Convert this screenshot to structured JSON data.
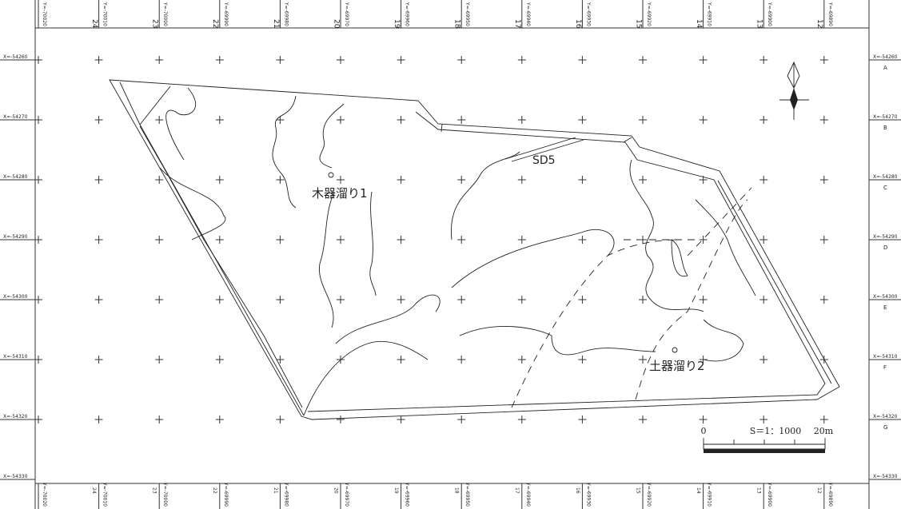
{
  "map": {
    "columns": [
      "Y=-70020",
      "Y=-70010",
      "Y=-70000",
      "Y=-69990",
      "Y=-69980",
      "Y=-69970",
      "Y=-69960",
      "Y=-69950",
      "Y=-69940",
      "Y=-69930",
      "Y=-69920",
      "Y=-69910",
      "Y=-69900",
      "Y=-69890"
    ],
    "column_numbers": [
      "24",
      "23",
      "22",
      "21",
      "20",
      "19",
      "18",
      "17",
      "16",
      "15",
      "14",
      "13",
      "12"
    ],
    "rows": [
      "X=-54260",
      "X=-54270",
      "X=-54280",
      "X=-54290",
      "X=-54300",
      "X=-54310",
      "X=-54320",
      "X=-54330"
    ],
    "row_letters": [
      "A",
      "B",
      "C",
      "D",
      "E",
      "F",
      "G"
    ],
    "features": [
      "SD5",
      "木器溜り1",
      "土器溜り2"
    ],
    "scale": {
      "start": "0",
      "ratio": "S＝1：1000",
      "end": "20m"
    }
  }
}
